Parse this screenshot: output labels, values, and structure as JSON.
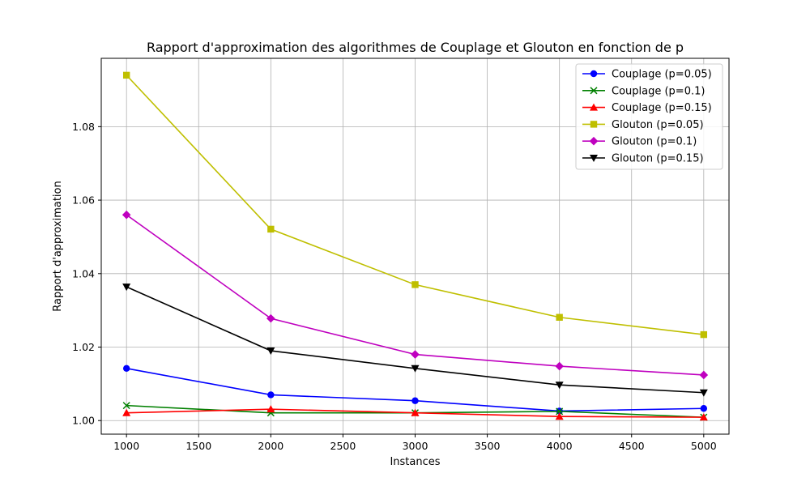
{
  "chart_data": {
    "type": "line",
    "title": "Rapport d'approximation des algorithmes de Couplage et Glouton en fonction de p",
    "xlabel": "Instances",
    "ylabel": "Rapport d'approximation",
    "x": [
      1000,
      2000,
      3000,
      4000,
      5000
    ],
    "xlim": [
      825,
      5175
    ],
    "ylim": [
      0.9963,
      1.0986
    ],
    "xticks": [
      1000,
      1500,
      2000,
      2500,
      3000,
      3500,
      4000,
      4500,
      5000
    ],
    "yticks": [
      1.0,
      1.02,
      1.04,
      1.06,
      1.08
    ],
    "xtick_labels": [
      "1000",
      "1500",
      "2000",
      "2500",
      "3000",
      "3500",
      "4000",
      "4500",
      "5000"
    ],
    "ytick_labels": [
      "1.00",
      "1.02",
      "1.04",
      "1.06",
      "1.08"
    ],
    "grid": true,
    "legend_position": "top-right",
    "series": [
      {
        "name": "Couplage (p=0.05)",
        "color": "#0000ff",
        "marker": "circle",
        "values": [
          1.0142,
          1.007,
          1.0054,
          1.0026,
          1.0033
        ]
      },
      {
        "name": "Couplage (p=0.1)",
        "color": "#008000",
        "marker": "x",
        "values": [
          1.0041,
          1.0021,
          1.0021,
          1.0025,
          1.0009
        ]
      },
      {
        "name": "Couplage (p=0.15)",
        "color": "#ff0000",
        "marker": "triangle-up",
        "values": [
          1.0021,
          1.0031,
          1.0021,
          1.0011,
          1.0009
        ]
      },
      {
        "name": "Glouton (p=0.05)",
        "color": "#bfbf00",
        "marker": "square",
        "values": [
          1.094,
          1.0521,
          1.037,
          1.0281,
          1.0234
        ]
      },
      {
        "name": "Glouton (p=0.1)",
        "color": "#bf00bf",
        "marker": "diamond",
        "values": [
          1.056,
          1.0278,
          1.018,
          1.0148,
          1.0124
        ]
      },
      {
        "name": "Glouton (p=0.15)",
        "color": "#000000",
        "marker": "triangle-down",
        "values": [
          1.0364,
          1.019,
          1.0142,
          1.0097,
          1.0076
        ]
      }
    ]
  }
}
